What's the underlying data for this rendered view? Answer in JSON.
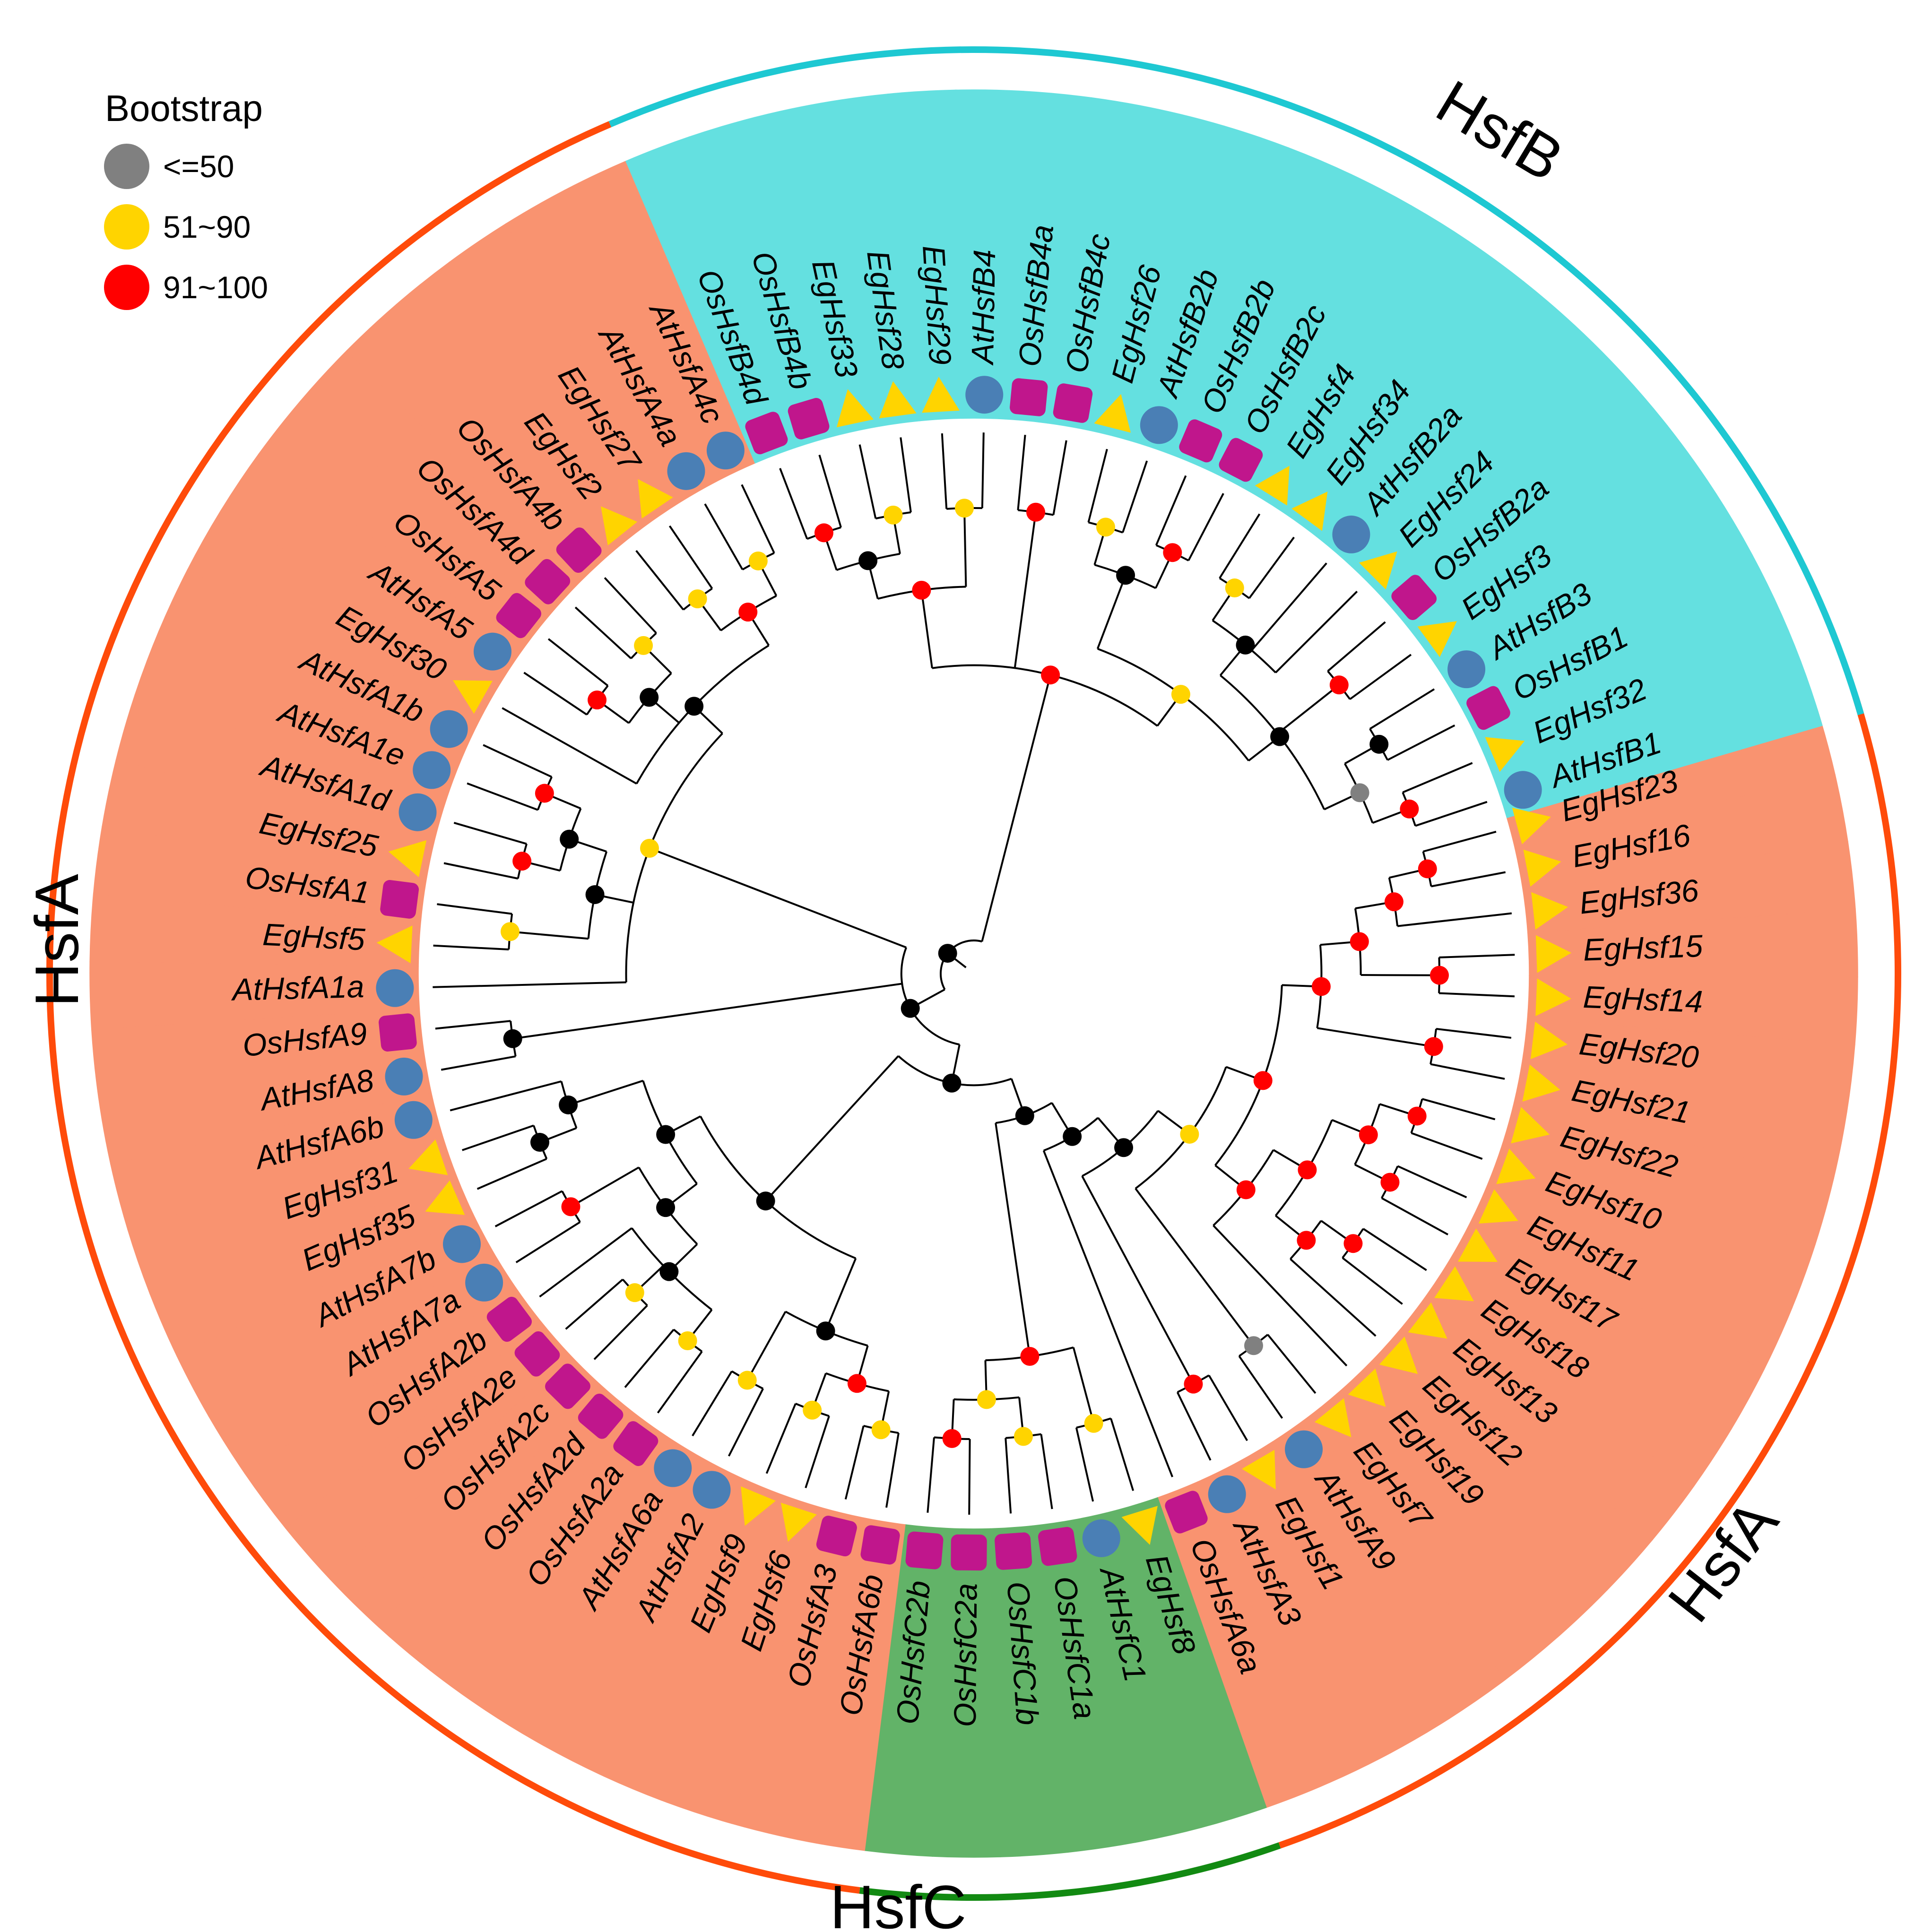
{
  "legend": {
    "title": "Bootstrap",
    "items": [
      {
        "label": "<=50",
        "color": "#808080"
      },
      {
        "label": "51~90",
        "color": "#ffd400"
      },
      {
        "label": "91~100",
        "color": "#ff0000"
      }
    ]
  },
  "colors": {
    "hsfA": "#f99370",
    "hsfB": "#64e0e0",
    "hsfC": "#62b368",
    "arcA": "#ff4b0a",
    "arcB": "#1ec8d2",
    "arcC": "#128a12",
    "eg": "#ffd400",
    "at": "#4a7fb5",
    "os": "#c0168c",
    "internal": "#000000"
  },
  "class_labels": {
    "hsfB": "HsfB",
    "hsfA_left": "HsfA",
    "hsfA_right": "HsfA",
    "hsfC": "HsfC"
  },
  "leaves": [
    {
      "name": "EgHsf23",
      "group": "A",
      "species": "Eg"
    },
    {
      "name": "EgHsf16",
      "group": "A",
      "species": "Eg"
    },
    {
      "name": "EgHsf36",
      "group": "A",
      "species": "Eg"
    },
    {
      "name": "EgHsf15",
      "group": "A",
      "species": "Eg"
    },
    {
      "name": "EgHsf14",
      "group": "A",
      "species": "Eg"
    },
    {
      "name": "EgHsf20",
      "group": "A",
      "species": "Eg"
    },
    {
      "name": "EgHsf21",
      "group": "A",
      "species": "Eg"
    },
    {
      "name": "EgHsf22",
      "group": "A",
      "species": "Eg"
    },
    {
      "name": "EgHsf10",
      "group": "A",
      "species": "Eg"
    },
    {
      "name": "EgHsf11",
      "group": "A",
      "species": "Eg"
    },
    {
      "name": "EgHsf17",
      "group": "A",
      "species": "Eg"
    },
    {
      "name": "EgHsf18",
      "group": "A",
      "species": "Eg"
    },
    {
      "name": "EgHsf13",
      "group": "A",
      "species": "Eg"
    },
    {
      "name": "EgHsf12",
      "group": "A",
      "species": "Eg"
    },
    {
      "name": "EgHsf19",
      "group": "A",
      "species": "Eg"
    },
    {
      "name": "EgHsf7",
      "group": "A",
      "species": "Eg"
    },
    {
      "name": "AtHsfA9",
      "group": "A",
      "species": "At"
    },
    {
      "name": "EgHsf1",
      "group": "A",
      "species": "Eg"
    },
    {
      "name": "AtHsfA3",
      "group": "A",
      "species": "At"
    },
    {
      "name": "OsHsfA6a",
      "group": "A",
      "species": "Os"
    },
    {
      "name": "EgHsf8",
      "group": "C",
      "species": "Eg"
    },
    {
      "name": "AtHsfC1",
      "group": "C",
      "species": "At"
    },
    {
      "name": "OsHsfC1a",
      "group": "C",
      "species": "Os"
    },
    {
      "name": "OsHsfC1b",
      "group": "C",
      "species": "Os"
    },
    {
      "name": "OsHsfC2a",
      "group": "C",
      "species": "Os"
    },
    {
      "name": "OsHsfC2b",
      "group": "C",
      "species": "Os"
    },
    {
      "name": "OsHsfA6b",
      "group": "A",
      "species": "Os"
    },
    {
      "name": "OsHsfA3",
      "group": "A",
      "species": "Os"
    },
    {
      "name": "EgHsf6",
      "group": "A",
      "species": "Eg"
    },
    {
      "name": "EgHsf9",
      "group": "A",
      "species": "Eg"
    },
    {
      "name": "AtHsfA2",
      "group": "A",
      "species": "At"
    },
    {
      "name": "AtHsfA6a",
      "group": "A",
      "species": "At"
    },
    {
      "name": "OsHsfA2a",
      "group": "A",
      "species": "Os"
    },
    {
      "name": "OsHsfA2d",
      "group": "A",
      "species": "Os"
    },
    {
      "name": "OsHsfA2c",
      "group": "A",
      "species": "Os"
    },
    {
      "name": "OsHsfA2e",
      "group": "A",
      "species": "Os"
    },
    {
      "name": "OsHsfA2b",
      "group": "A",
      "species": "Os"
    },
    {
      "name": "AtHsfA7a",
      "group": "A",
      "species": "At"
    },
    {
      "name": "AtHsfA7b",
      "group": "A",
      "species": "At"
    },
    {
      "name": "EgHsf35",
      "group": "A",
      "species": "Eg"
    },
    {
      "name": "EgHsf31",
      "group": "A",
      "species": "Eg"
    },
    {
      "name": "AtHsfA6b",
      "group": "A",
      "species": "At"
    },
    {
      "name": "AtHsfA8",
      "group": "A",
      "species": "At"
    },
    {
      "name": "OsHsfA9",
      "group": "A",
      "species": "Os"
    },
    {
      "name": "AtHsfA1a",
      "group": "A",
      "species": "At"
    },
    {
      "name": "EgHsf5",
      "group": "A",
      "species": "Eg"
    },
    {
      "name": "OsHsfA1",
      "group": "A",
      "species": "Os"
    },
    {
      "name": "EgHsf25",
      "group": "A",
      "species": "Eg"
    },
    {
      "name": "AtHsfA1d",
      "group": "A",
      "species": "At"
    },
    {
      "name": "AtHsfA1e",
      "group": "A",
      "species": "At"
    },
    {
      "name": "AtHsfA1b",
      "group": "A",
      "species": "At"
    },
    {
      "name": "EgHsf30",
      "group": "A",
      "species": "Eg"
    },
    {
      "name": "AtHsfA5",
      "group": "A",
      "species": "At"
    },
    {
      "name": "OsHsfA5",
      "group": "A",
      "species": "Os"
    },
    {
      "name": "OsHsfA4d",
      "group": "A",
      "species": "Os"
    },
    {
      "name": "OsHsfA4b",
      "group": "A",
      "species": "Os"
    },
    {
      "name": "EgHsf2",
      "group": "A",
      "species": "Eg"
    },
    {
      "name": "EgHsf27",
      "group": "A",
      "species": "Eg"
    },
    {
      "name": "AtHsfA4a",
      "group": "A",
      "species": "At"
    },
    {
      "name": "AtHsfA4c",
      "group": "A",
      "species": "At"
    },
    {
      "name": "OsHsfB4d",
      "group": "B",
      "species": "Os"
    },
    {
      "name": "OsHsfB4b",
      "group": "B",
      "species": "Os"
    },
    {
      "name": "EgHsf33",
      "group": "B",
      "species": "Eg"
    },
    {
      "name": "EgHsf28",
      "group": "B",
      "species": "Eg"
    },
    {
      "name": "EgHsf29",
      "group": "B",
      "species": "Eg"
    },
    {
      "name": "AtHsfB4",
      "group": "B",
      "species": "At"
    },
    {
      "name": "OsHsfB4a",
      "group": "B",
      "species": "Os"
    },
    {
      "name": "OsHsfB4c",
      "group": "B",
      "species": "Os"
    },
    {
      "name": "EgHsf26",
      "group": "B",
      "species": "Eg"
    },
    {
      "name": "AtHsfB2b",
      "group": "B",
      "species": "At"
    },
    {
      "name": "OsHsfB2b",
      "group": "B",
      "species": "Os"
    },
    {
      "name": "OsHsfB2c",
      "group": "B",
      "species": "Os"
    },
    {
      "name": "EgHsf4",
      "group": "B",
      "species": "Eg"
    },
    {
      "name": "EgHsf34",
      "group": "B",
      "species": "Eg"
    },
    {
      "name": "AtHsfB2a",
      "group": "B",
      "species": "At"
    },
    {
      "name": "EgHsf24",
      "group": "B",
      "species": "Eg"
    },
    {
      "name": "OsHsfB2a",
      "group": "B",
      "species": "Os"
    },
    {
      "name": "EgHsf3",
      "group": "B",
      "species": "Eg"
    },
    {
      "name": "AtHsfB3",
      "group": "B",
      "species": "At"
    },
    {
      "name": "OsHsfB1",
      "group": "B",
      "species": "Os"
    },
    {
      "name": "EgHsf32",
      "group": "B",
      "species": "Eg"
    },
    {
      "name": "AtHsfB1",
      "group": "B",
      "species": "At"
    }
  ],
  "bootstrap_nodes": [
    {
      "leaves": [
        0,
        1
      ],
      "support": "91~100"
    },
    {
      "leaves": [
        0,
        2
      ],
      "support": "91~100"
    },
    {
      "leaves": [
        3,
        4
      ],
      "support": "91~100"
    },
    {
      "leaves": [
        0,
        4
      ],
      "support": "91~100"
    },
    {
      "leaves": [
        5,
        6
      ],
      "support": "91~100"
    },
    {
      "leaves": [
        0,
        6
      ],
      "support": "91~100"
    },
    {
      "leaves": [
        7,
        8
      ],
      "support": "91~100"
    },
    {
      "leaves": [
        9,
        10
      ],
      "support": "91~100"
    },
    {
      "leaves": [
        7,
        10
      ],
      "support": "91~100"
    },
    {
      "leaves": [
        11,
        12
      ],
      "support": "91~100"
    },
    {
      "leaves": [
        11,
        13
      ],
      "support": "91~100"
    },
    {
      "leaves": [
        7,
        13
      ],
      "support": "91~100"
    },
    {
      "leaves": [
        7,
        14
      ],
      "support": "91~100"
    },
    {
      "leaves": [
        0,
        14
      ],
      "support": "91~100"
    },
    {
      "leaves": [
        15,
        16
      ],
      "support": "<=50"
    },
    {
      "leaves": [
        0,
        16
      ],
      "support": "51~90"
    },
    {
      "leaves": [
        17,
        18
      ],
      "support": "91~100"
    },
    {
      "leaves": [
        0,
        18
      ],
      "support": "black"
    },
    {
      "leaves": [
        0,
        19
      ],
      "support": "black"
    },
    {
      "leaves": [
        20,
        21
      ],
      "support": "51~90"
    },
    {
      "leaves": [
        22,
        23
      ],
      "support": "51~90"
    },
    {
      "leaves": [
        24,
        25
      ],
      "support": "91~100"
    },
    {
      "leaves": [
        22,
        25
      ],
      "support": "51~90"
    },
    {
      "leaves": [
        20,
        25
      ],
      "support": "91~100"
    },
    {
      "leaves": [
        0,
        25
      ],
      "support": "black"
    },
    {
      "leaves": [
        26,
        27
      ],
      "support": "51~90"
    },
    {
      "leaves": [
        28,
        29
      ],
      "support": "51~90"
    },
    {
      "leaves": [
        26,
        29
      ],
      "support": "91~100"
    },
    {
      "leaves": [
        30,
        31
      ],
      "support": "51~90"
    },
    {
      "leaves": [
        26,
        31
      ],
      "support": "black"
    },
    {
      "leaves": [
        32,
        33
      ],
      "support": "51~90"
    },
    {
      "leaves": [
        34,
        35
      ],
      "support": "51~90"
    },
    {
      "leaves": [
        32,
        36
      ],
      "support": "black"
    },
    {
      "leaves": [
        37,
        38
      ],
      "support": "91~100"
    },
    {
      "leaves": [
        32,
        38
      ],
      "support": "black"
    },
    {
      "leaves": [
        39,
        40
      ],
      "support": "black"
    },
    {
      "leaves": [
        39,
        41
      ],
      "support": "black"
    },
    {
      "leaves": [
        32,
        41
      ],
      "support": "black"
    },
    {
      "leaves": [
        26,
        41
      ],
      "support": "black"
    },
    {
      "leaves": [
        0,
        41
      ],
      "support": "black"
    },
    {
      "leaves": [
        42,
        43
      ],
      "support": "black"
    },
    {
      "leaves": [
        45,
        46
      ],
      "support": "51~90"
    },
    {
      "leaves": [
        47,
        48
      ],
      "support": "91~100"
    },
    {
      "leaves": [
        49,
        50
      ],
      "support": "91~100"
    },
    {
      "leaves": [
        47,
        50
      ],
      "support": "black"
    },
    {
      "leaves": [
        45,
        50
      ],
      "support": "black"
    },
    {
      "leaves": [
        52,
        53
      ],
      "support": "91~100"
    },
    {
      "leaves": [
        54,
        55
      ],
      "support": "51~90"
    },
    {
      "leaves": [
        52,
        55
      ],
      "support": "black"
    },
    {
      "leaves": [
        56,
        57
      ],
      "support": "51~90"
    },
    {
      "leaves": [
        58,
        59
      ],
      "support": "51~90"
    },
    {
      "leaves": [
        56,
        59
      ],
      "support": "91~100"
    },
    {
      "leaves": [
        51,
        59
      ],
      "support": "black"
    },
    {
      "leaves": [
        44,
        59
      ],
      "support": "51~90"
    },
    {
      "leaves": [
        0,
        59
      ],
      "support": "black"
    },
    {
      "leaves": [
        60,
        61
      ],
      "support": "91~100"
    },
    {
      "leaves": [
        62,
        63
      ],
      "support": "51~90"
    },
    {
      "leaves": [
        60,
        63
      ],
      "support": "black"
    },
    {
      "leaves": [
        64,
        65
      ],
      "support": "51~90"
    },
    {
      "leaves": [
        60,
        65
      ],
      "support": "91~100"
    },
    {
      "leaves": [
        66,
        67
      ],
      "support": "91~100"
    },
    {
      "leaves": [
        68,
        69
      ],
      "support": "51~90"
    },
    {
      "leaves": [
        70,
        71
      ],
      "support": "91~100"
    },
    {
      "leaves": [
        68,
        71
      ],
      "support": "black"
    },
    {
      "leaves": [
        72,
        73
      ],
      "support": "51~90"
    },
    {
      "leaves": [
        72,
        75
      ],
      "support": "black"
    },
    {
      "leaves": [
        76,
        77
      ],
      "support": "91~100"
    },
    {
      "leaves": [
        78,
        79
      ],
      "support": "black"
    },
    {
      "leaves": [
        80,
        81
      ],
      "support": "91~100"
    },
    {
      "leaves": [
        78,
        81
      ],
      "support": "<=50"
    },
    {
      "leaves": [
        72,
        81
      ],
      "support": "black"
    },
    {
      "leaves": [
        68,
        81
      ],
      "support": "51~90"
    },
    {
      "leaves": [
        60,
        81
      ],
      "support": "91~100"
    },
    {
      "leaves": [
        0,
        81
      ],
      "support": "black"
    }
  ]
}
